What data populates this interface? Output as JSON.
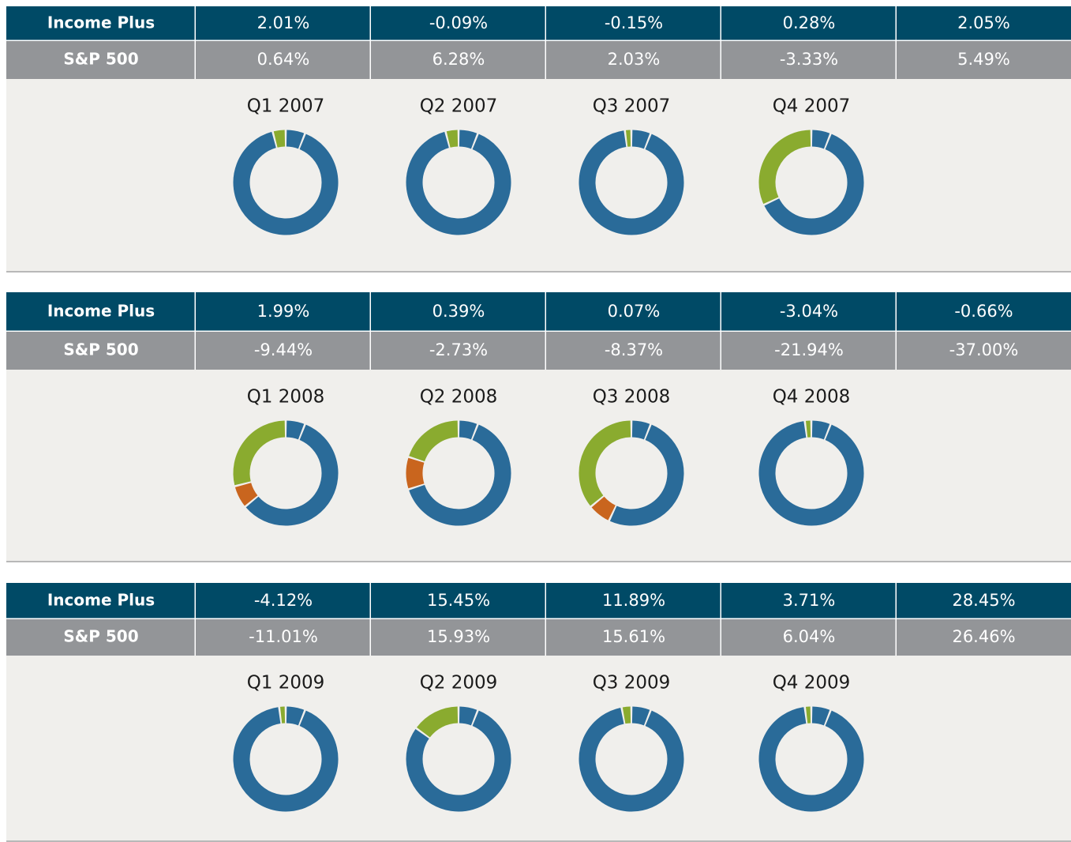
{
  "segment_colors": [
    "#2a6b99",
    "#2a6b99",
    "#c9651e",
    "#8aab2f"
  ],
  "panels": [
    {
      "rows": [
        {
          "label": "Income Plus",
          "values": [
            "2.01%",
            "-0.09%",
            "-0.15%",
            "0.28%",
            "2.05%"
          ]
        },
        {
          "label": "S&P 500",
          "values": [
            "0.64%",
            "6.28%",
            "2.03%",
            "-3.33%",
            "5.49%"
          ]
        }
      ],
      "charts": [
        {
          "title": "Q1 2007",
          "segments": [
            6,
            90,
            0,
            4
          ]
        },
        {
          "title": "Q2 2007",
          "segments": [
            6,
            90,
            0,
            4
          ]
        },
        {
          "title": "Q3 2007",
          "segments": [
            6,
            92,
            0,
            2
          ]
        },
        {
          "title": "Q4 2007",
          "segments": [
            6,
            62,
            0,
            32
          ]
        }
      ]
    },
    {
      "rows": [
        {
          "label": "Income Plus",
          "values": [
            "1.99%",
            "0.39%",
            "0.07%",
            "-3.04%",
            "-0.66%"
          ]
        },
        {
          "label": "S&P 500",
          "values": [
            "-9.44%",
            "-2.73%",
            "-8.37%",
            "-21.94%",
            "-37.00%"
          ]
        }
      ],
      "charts": [
        {
          "title": "Q1 2008",
          "segments": [
            6,
            58,
            7,
            29
          ]
        },
        {
          "title": "Q2 2008",
          "segments": [
            6,
            64,
            10,
            20
          ]
        },
        {
          "title": "Q3 2008",
          "segments": [
            6,
            51,
            7,
            36
          ]
        },
        {
          "title": "Q4 2008",
          "segments": [
            6,
            92,
            0,
            2
          ]
        }
      ]
    },
    {
      "rows": [
        {
          "label": "Income Plus",
          "values": [
            "-4.12%",
            "15.45%",
            "11.89%",
            "3.71%",
            "28.45%"
          ]
        },
        {
          "label": "S&P 500",
          "values": [
            "-11.01%",
            "15.93%",
            "15.61%",
            "6.04%",
            "26.46%"
          ]
        }
      ],
      "charts": [
        {
          "title": "Q1 2009",
          "segments": [
            6,
            92,
            0,
            2
          ]
        },
        {
          "title": "Q2 2009",
          "segments": [
            6,
            79,
            0,
            15
          ]
        },
        {
          "title": "Q3 2009",
          "segments": [
            6,
            91,
            0,
            3
          ]
        },
        {
          "title": "Q4 2009",
          "segments": [
            6,
            92,
            0,
            2
          ]
        }
      ]
    }
  ]
}
